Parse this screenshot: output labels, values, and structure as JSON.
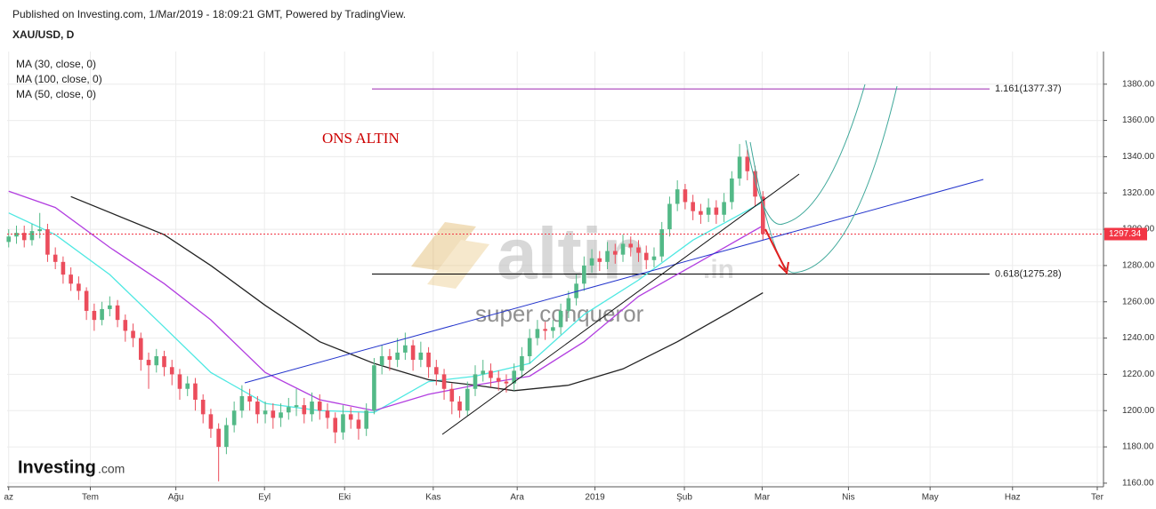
{
  "chart_data": {
    "type": "candlestick",
    "subtitle": "Published on Investing.com, 1/Mar/2019 - 18:09:21 GMT, Powered by TradingView.",
    "title": "XAU/USD, D",
    "annotation": "ONS ALTIN",
    "watermark": {
      "brand": "altin",
      "suffix": ".in",
      "tagline": "super conqueror"
    },
    "logo": {
      "name": "Investing",
      "suffix": ".com"
    },
    "up_color": "#53b987",
    "down_color": "#eb4d5c",
    "xlim": [
      -0.2,
      140.8
    ],
    "ylim": [
      1158,
      1398
    ],
    "grid": true,
    "xticks": [
      {
        "value": 0,
        "label": "az"
      },
      {
        "value": 10.5,
        "label": "Tem"
      },
      {
        "value": 21.5,
        "label": "Ağu"
      },
      {
        "value": 32.9,
        "label": "Eyl"
      },
      {
        "value": 43.2,
        "label": "Eki"
      },
      {
        "value": 54.6,
        "label": "Kas"
      },
      {
        "value": 65.4,
        "label": "Ara"
      },
      {
        "value": 75.4,
        "label": "2019"
      },
      {
        "value": 86.9,
        "label": "Şub"
      },
      {
        "value": 96.9,
        "label": "Mar"
      },
      {
        "value": 108,
        "label": "Nis"
      },
      {
        "value": 118.5,
        "label": "May"
      },
      {
        "value": 129.1,
        "label": "Haz"
      },
      {
        "value": 140,
        "label": "Ter"
      }
    ],
    "yticks": [
      {
        "value": 1160,
        "label": "1160.00"
      },
      {
        "value": 1180,
        "label": "1180.00"
      },
      {
        "value": 1200,
        "label": "1200.00"
      },
      {
        "value": 1220,
        "label": "1220.00"
      },
      {
        "value": 1240,
        "label": "1240.00"
      },
      {
        "value": 1260,
        "label": "1260.00"
      },
      {
        "value": 1280,
        "label": "1280.00"
      },
      {
        "value": 1300,
        "label": "1300.00"
      },
      {
        "value": 1320,
        "label": "1320.00"
      },
      {
        "value": 1340,
        "label": "1340.00"
      },
      {
        "value": 1360,
        "label": "1360.00"
      },
      {
        "value": 1380,
        "label": "1380.00"
      }
    ],
    "open": [
      1293,
      1296,
      1298,
      1294,
      1299,
      1300,
      1286,
      1282,
      1275,
      1270,
      1266,
      1255,
      1250,
      1256,
      1258,
      1250,
      1244,
      1240,
      1228,
      1225,
      1230,
      1224,
      1220,
      1212,
      1215,
      1206,
      1198,
      1190,
      1180,
      1192,
      1200,
      1208,
      1205,
      1198,
      1200,
      1196,
      1199,
      1202,
      1203,
      1198,
      1205,
      1200,
      1196,
      1188,
      1198,
      1195,
      1190,
      1200,
      1225,
      1230,
      1228,
      1232,
      1236,
      1228,
      1232,
      1224,
      1220,
      1212,
      1205,
      1200,
      1212,
      1220,
      1222,
      1218,
      1216,
      1215,
      1222,
      1230,
      1240,
      1245,
      1244,
      1246,
      1255,
      1262,
      1270,
      1280,
      1284,
      1282,
      1288,
      1286,
      1292,
      1290,
      1287,
      1283,
      1285,
      1300,
      1314,
      1322,
      1315,
      1310,
      1308,
      1312,
      1308,
      1315,
      1328,
      1340,
      1332,
      1318
    ],
    "high": [
      1300,
      1302,
      1302,
      1303,
      1309,
      1303,
      1290,
      1285,
      1279,
      1274,
      1268,
      1259,
      1260,
      1263,
      1261,
      1253,
      1248,
      1243,
      1232,
      1234,
      1233,
      1228,
      1223,
      1219,
      1218,
      1209,
      1201,
      1193,
      1196,
      1205,
      1214,
      1212,
      1208,
      1205,
      1204,
      1204,
      1207,
      1212,
      1207,
      1210,
      1209,
      1204,
      1199,
      1203,
      1202,
      1199,
      1204,
      1229,
      1236,
      1234,
      1240,
      1243,
      1239,
      1238,
      1235,
      1228,
      1223,
      1215,
      1208,
      1216,
      1225,
      1228,
      1226,
      1222,
      1220,
      1226,
      1235,
      1245,
      1250,
      1249,
      1250,
      1259,
      1266,
      1275,
      1285,
      1289,
      1288,
      1293,
      1292,
      1297,
      1296,
      1294,
      1291,
      1290,
      1304,
      1318,
      1327,
      1325,
      1319,
      1314,
      1317,
      1316,
      1320,
      1332,
      1347,
      1344,
      1335,
      1321
    ],
    "low": [
      1290,
      1292,
      1290,
      1291,
      1295,
      1282,
      1278,
      1270,
      1266,
      1261,
      1250,
      1244,
      1247,
      1252,
      1246,
      1238,
      1235,
      1222,
      1212,
      1221,
      1219,
      1214,
      1206,
      1208,
      1200,
      1193,
      1185,
      1161,
      1176,
      1188,
      1196,
      1200,
      1193,
      1193,
      1190,
      1191,
      1195,
      1197,
      1193,
      1194,
      1195,
      1190,
      1182,
      1184,
      1190,
      1184,
      1186,
      1198,
      1220,
      1222,
      1224,
      1228,
      1222,
      1224,
      1218,
      1214,
      1206,
      1198,
      1196,
      1197,
      1208,
      1216,
      1213,
      1211,
      1210,
      1211,
      1218,
      1226,
      1236,
      1239,
      1240,
      1242,
      1251,
      1258,
      1266,
      1276,
      1277,
      1278,
      1281,
      1282,
      1285,
      1282,
      1278,
      1279,
      1282,
      1296,
      1310,
      1311,
      1305,
      1303,
      1304,
      1303,
      1304,
      1311,
      1324,
      1327,
      1313,
      1294
    ],
    "close": [
      1296,
      1298,
      1294,
      1299,
      1300,
      1286,
      1282,
      1275,
      1270,
      1266,
      1255,
      1250,
      1256,
      1258,
      1250,
      1244,
      1240,
      1228,
      1225,
      1230,
      1224,
      1220,
      1212,
      1215,
      1206,
      1198,
      1190,
      1180,
      1192,
      1200,
      1208,
      1205,
      1198,
      1200,
      1196,
      1199,
      1202,
      1203,
      1198,
      1205,
      1200,
      1196,
      1188,
      1198,
      1195,
      1190,
      1200,
      1225,
      1230,
      1228,
      1232,
      1236,
      1228,
      1232,
      1224,
      1220,
      1212,
      1205,
      1200,
      1212,
      1220,
      1222,
      1218,
      1216,
      1215,
      1222,
      1230,
      1240,
      1245,
      1244,
      1246,
      1255,
      1262,
      1270,
      1280,
      1284,
      1282,
      1288,
      1286,
      1292,
      1290,
      1287,
      1283,
      1285,
      1300,
      1314,
      1322,
      1315,
      1310,
      1308,
      1312,
      1308,
      1315,
      1328,
      1340,
      1332,
      1318,
      1297.34
    ],
    "last_price_color": "#f23645",
    "series": [
      {
        "name": "MA (30, close, 0)",
        "color": "#4ee8e2",
        "x": [
          0,
          6,
          13,
          20,
          26,
          33,
          40,
          47,
          54,
          60,
          67,
          74,
          81,
          88,
          97
        ],
        "values": [
          1309,
          1297,
          1275,
          1246,
          1221,
          1204,
          1200,
          1199,
          1216,
          1219,
          1226,
          1253,
          1272,
          1294,
          1315
        ]
      },
      {
        "name": "MA (100, close, 0)",
        "color": "#222222",
        "x": [
          8,
          20,
          26,
          33,
          40,
          47,
          54,
          60,
          65,
          72,
          79,
          86,
          93,
          97
        ],
        "values": [
          1318,
          1297,
          1280,
          1258,
          1238,
          1226,
          1217,
          1214,
          1211,
          1214,
          1223,
          1238,
          1255,
          1265
        ]
      },
      {
        "name": "MA (50, close, 0)",
        "color": "#b23ee0",
        "x": [
          0,
          6,
          13,
          20,
          26,
          33,
          40,
          47,
          54,
          60,
          67,
          74,
          81,
          88,
          97
        ],
        "values": [
          1321,
          1312,
          1290,
          1270,
          1250,
          1221,
          1206,
          1200,
          1209,
          1214,
          1219,
          1238,
          1263,
          1280,
          1302
        ]
      }
    ],
    "levels": [
      {
        "value": 1377.37,
        "label": "1.161(1377.37)",
        "color": "#9c27b0"
      },
      {
        "value": 1275.28,
        "label": "0.618(1275.28)",
        "color": "#000000"
      }
    ]
  }
}
